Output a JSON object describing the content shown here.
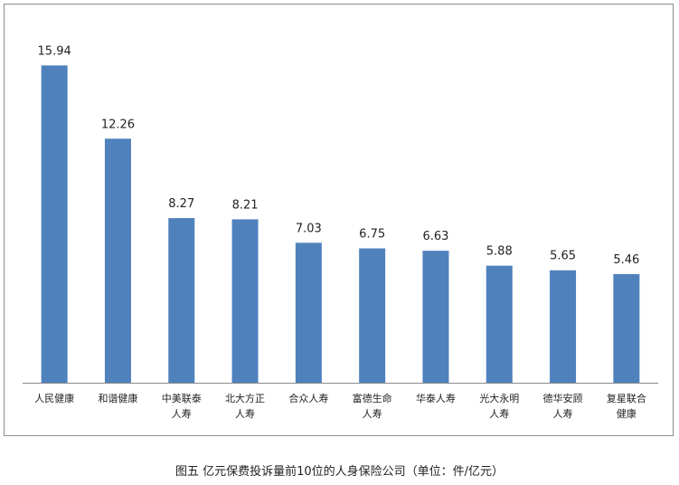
{
  "chart_data": {
    "type": "bar",
    "categories": [
      [
        "人民健康"
      ],
      [
        "和谐健康"
      ],
      [
        "中美联泰",
        "人寿"
      ],
      [
        "北大方正",
        "人寿"
      ],
      [
        "合众人寿"
      ],
      [
        "富德生命",
        "人寿"
      ],
      [
        "华泰人寿"
      ],
      [
        "光大永明",
        "人寿"
      ],
      [
        "德华安顾",
        "人寿"
      ],
      [
        "复星联合",
        "健康"
      ]
    ],
    "values": [
      15.94,
      12.26,
      8.27,
      8.21,
      7.03,
      6.75,
      6.63,
      5.88,
      5.65,
      5.46
    ],
    "value_labels": [
      "15.94",
      "12.26",
      "8.27",
      "8.21",
      "7.03",
      "6.75",
      "6.63",
      "5.88",
      "5.65",
      "5.46"
    ],
    "ylim": [
      0,
      16
    ],
    "grid": false,
    "bar_color": "#4f81bd"
  },
  "caption": "图五  亿元保费投诉量前10位的人身保险公司（单位：件/亿元）"
}
